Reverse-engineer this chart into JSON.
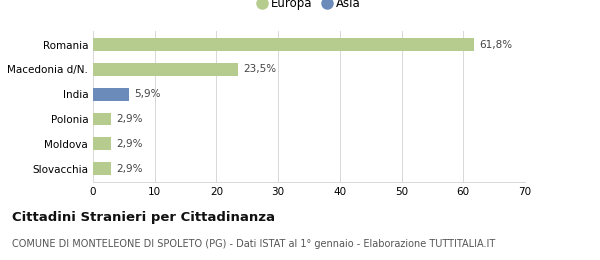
{
  "categories": [
    "Slovacchia",
    "Moldova",
    "Polonia",
    "India",
    "Macedonia d/N.",
    "Romania"
  ],
  "values": [
    2.9,
    2.9,
    2.9,
    5.9,
    23.5,
    61.8
  ],
  "labels": [
    "2,9%",
    "2,9%",
    "2,9%",
    "5,9%",
    "23,5%",
    "61,8%"
  ],
  "colors": [
    "#b5cc8e",
    "#b5cc8e",
    "#b5cc8e",
    "#6b8cba",
    "#b5cc8e",
    "#b5cc8e"
  ],
  "legend_items": [
    {
      "label": "Europa",
      "color": "#b5cc8e"
    },
    {
      "label": "Asia",
      "color": "#6b8cba"
    }
  ],
  "xlim": [
    0,
    70
  ],
  "xticks": [
    0,
    10,
    20,
    30,
    40,
    50,
    60,
    70
  ],
  "title": "Cittadini Stranieri per Cittadinanza",
  "subtitle": "COMUNE DI MONTELEONE DI SPOLETO (PG) - Dati ISTAT al 1° gennaio - Elaborazione TUTTITALIA.IT",
  "bg_color": "#ffffff",
  "grid_color": "#d8d8d8",
  "bar_height": 0.52,
  "title_fontsize": 9.5,
  "subtitle_fontsize": 7.0,
  "label_fontsize": 7.5,
  "tick_fontsize": 7.5,
  "legend_fontsize": 8.5
}
